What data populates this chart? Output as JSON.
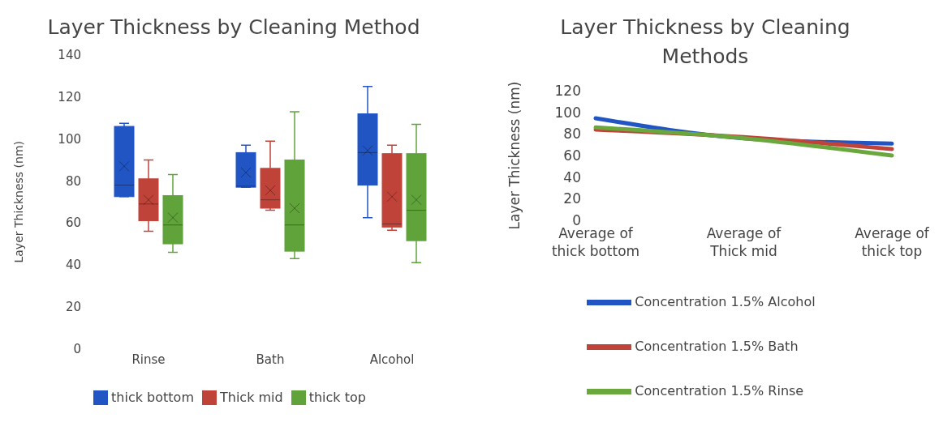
{
  "chart_data": [
    {
      "type": "box",
      "title": "Layer Thickness by Cleaning Method",
      "ylabel": "Layer Thickness (nm)",
      "categories": [
        "Rinse",
        "Bath",
        "Alcohol"
      ],
      "ylim": [
        0,
        140
      ],
      "yticks": [
        0,
        20,
        40,
        60,
        80,
        100,
        120,
        140
      ],
      "grid": false,
      "legend": "bottom",
      "series": [
        {
          "name": "thick bottom",
          "color": "#2155c4",
          "boxes": [
            {
              "low": 72.5,
              "q1": 72.5,
              "median": 78,
              "q3": 106,
              "high": 107.5,
              "mean": 87
            },
            {
              "low": 77,
              "q1": 77,
              "median": 77.5,
              "q3": 93.5,
              "high": 97,
              "mean": 84
            },
            {
              "low": 62.5,
              "q1": 78,
              "median": 93.5,
              "q3": 112,
              "high": 125,
              "mean": 94.5
            }
          ]
        },
        {
          "name": "Thick mid",
          "color": "#c0433a",
          "boxes": [
            {
              "low": 56,
              "q1": 61,
              "median": 69,
              "q3": 81,
              "high": 90,
              "mean": 71
            },
            {
              "low": 66,
              "q1": 67,
              "median": 71,
              "q3": 86,
              "high": 99,
              "mean": 75.5
            },
            {
              "low": 56.5,
              "q1": 58,
              "median": 59.5,
              "q3": 93,
              "high": 97,
              "mean": 72.5
            }
          ]
        },
        {
          "name": "thick top",
          "color": "#5fa33a",
          "boxes": [
            {
              "low": 46,
              "q1": 50,
              "median": 59,
              "q3": 73,
              "high": 83,
              "mean": 62.5
            },
            {
              "low": 43,
              "q1": 46.5,
              "median": 59,
              "q3": 90,
              "high": 113,
              "mean": 67
            },
            {
              "low": 41,
              "q1": 51.5,
              "median": 66,
              "q3": 93,
              "high": 107,
              "mean": 71
            }
          ]
        }
      ]
    },
    {
      "type": "line",
      "title": "Layer Thickness by Cleaning Methods",
      "ylabel": "Layer Thickness  (nm)",
      "categories": [
        "Average of thick bottom",
        "Average of Thick mid",
        "Average of thick top"
      ],
      "ylim": [
        0,
        120
      ],
      "yticks": [
        0,
        20,
        40,
        60,
        80,
        100,
        120
      ],
      "grid": false,
      "legend": "bottom",
      "marker": "none",
      "line_style": "solid",
      "series": [
        {
          "name": "Concentration 1.5% Alcohol",
          "color": "#2155c4",
          "values": [
            94.5,
            76,
            71
          ]
        },
        {
          "name": "Concentration 1.5% Bath",
          "color": "#c0433a",
          "values": [
            84,
            77,
            66
          ]
        },
        {
          "name": "Concentration 1.5% Rinse",
          "color": "#6aa83e",
          "values": [
            86,
            76,
            60
          ]
        }
      ]
    }
  ]
}
